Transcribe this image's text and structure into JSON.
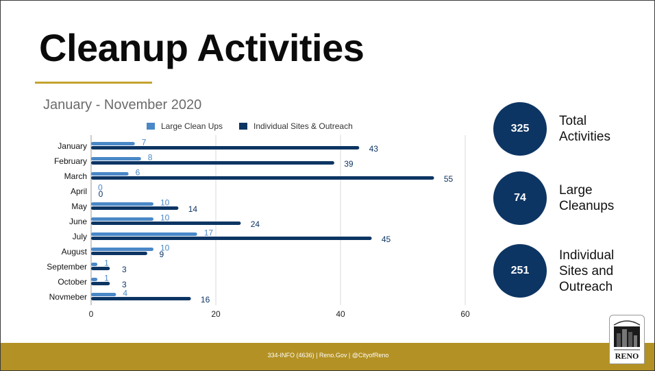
{
  "slide": {
    "title": "Cleanup Activities",
    "subtitle": "January - November 2020",
    "footer": "334-INFO (4636) | Reno.Gov | @CityofReno",
    "logo_text": "RENO"
  },
  "stats": [
    {
      "value": "325",
      "label": "Total Activities"
    },
    {
      "value": "74",
      "label": "Large Cleanups"
    },
    {
      "value": "251",
      "label": "Individual Sites and Outreach"
    }
  ],
  "colors": {
    "large": "#4a88c7",
    "individual": "#0d3563",
    "accent": "#c5a22e",
    "footer": "#b39124"
  },
  "chart_data": {
    "type": "bar",
    "orientation": "horizontal",
    "title": "",
    "xlabel": "",
    "ylabel": "",
    "xlim": [
      0,
      60
    ],
    "xticks": [
      0,
      20,
      40,
      60
    ],
    "grid": true,
    "legend_position": "top",
    "categories": [
      "January",
      "February",
      "March",
      "April",
      "May",
      "June",
      "July",
      "August",
      "September",
      "October",
      "Novmeber"
    ],
    "series": [
      {
        "name": "Large Clean Ups",
        "values": [
          7,
          8,
          6,
          0,
          10,
          10,
          17,
          10,
          1,
          1,
          4
        ]
      },
      {
        "name": "Individual Sites & Outreach",
        "values": [
          43,
          39,
          55,
          0,
          14,
          24,
          45,
          9,
          3,
          3,
          16
        ]
      }
    ]
  }
}
